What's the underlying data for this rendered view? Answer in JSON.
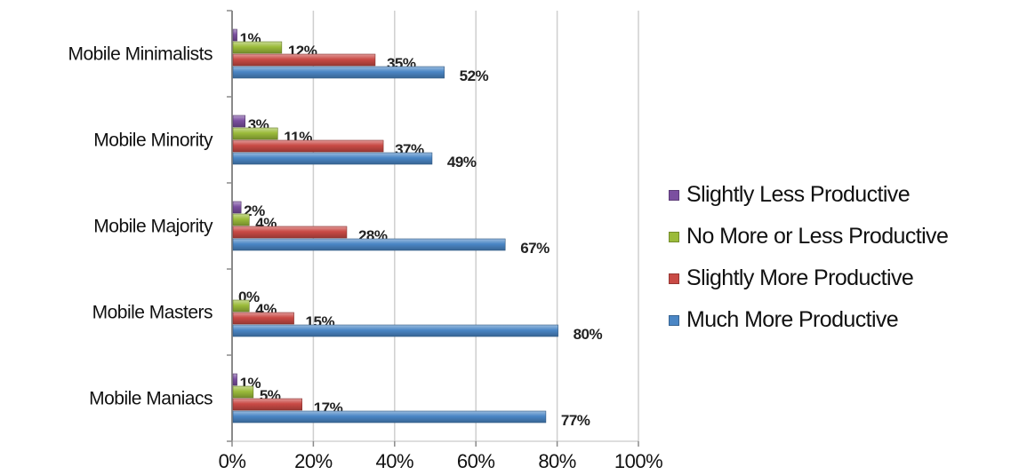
{
  "chart_data": {
    "type": "bar",
    "orientation": "horizontal",
    "title": "",
    "xlabel": "",
    "ylabel": "",
    "xlim": [
      0,
      100
    ],
    "x_ticks": [
      "0%",
      "20%",
      "40%",
      "60%",
      "80%",
      "100%"
    ],
    "grid": "vertical",
    "legend_position": "right",
    "categories": [
      "Mobile Minimalists",
      "Mobile Minority",
      "Mobile Majority",
      "Mobile Masters",
      "Mobile Maniacs"
    ],
    "series": [
      {
        "name": "Slightly Less Productive",
        "color": "#7b4fa0",
        "values": [
          1,
          3,
          2,
          0,
          1
        ],
        "labels": [
          "1%",
          "3%",
          "2%",
          "0%",
          "1%"
        ]
      },
      {
        "name": "No More or Less Productive",
        "color": "#9bbb3a",
        "values": [
          12,
          11,
          4,
          4,
          5
        ],
        "labels": [
          "12%",
          "11%",
          "4%",
          "4%",
          "5%"
        ]
      },
      {
        "name": "Slightly More Productive",
        "color": "#c94a45",
        "values": [
          35,
          37,
          28,
          15,
          17
        ],
        "labels": [
          "35%",
          "37%",
          "28%",
          "15%",
          "17%"
        ]
      },
      {
        "name": "Much More Productive",
        "color": "#4a86c5",
        "values": [
          52,
          49,
          67,
          80,
          77
        ],
        "labels": [
          "52%",
          "49%",
          "67%",
          "80%",
          "77%"
        ]
      }
    ],
    "legend_order": [
      0,
      1,
      2,
      3
    ]
  }
}
